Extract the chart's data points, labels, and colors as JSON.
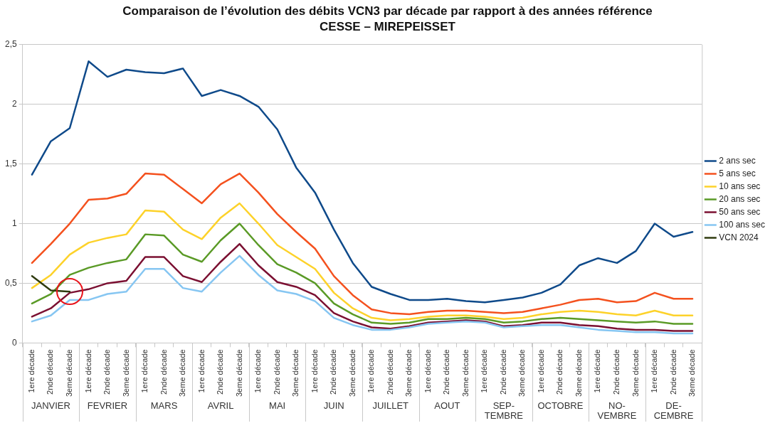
{
  "chart_data": {
    "type": "line",
    "title": "Comparaison de l’évolution des débits VCN3 par décade par rapport à des années référence",
    "subtitle": "CESSE – MIREPEISSET",
    "categories": [
      "1ere décade",
      "2nde décade",
      "3eme décade",
      "1ere décade",
      "2nde décade",
      "3eme décade",
      "1ere décade",
      "2nde décade",
      "3eme décade",
      "1ere décade",
      "2nde décade",
      "3eme décade",
      "1ere décade",
      "2nde décade",
      "3eme décade",
      "1ere décade",
      "2nde décade",
      "3eme décade",
      "1ere décade",
      "2nde décade",
      "3eme décade",
      "1ere décade",
      "2nde décade",
      "3eme décade",
      "1ere décade",
      "2nde décade",
      "3eme décade",
      "1ere décade",
      "2nde décade",
      "3eme décade",
      "1ere décade",
      "2nde décade",
      "3eme décade",
      "1ere décade",
      "2nde décade",
      "3eme décade"
    ],
    "annotations": [
      "JANVIER",
      "FEVRIER",
      "MARS",
      "AVRIL",
      "MAI",
      "JUIN",
      "JUILLET",
      "AOUT",
      "SEP-TEMBRE",
      "OCTOBRE",
      "NO-VEMBRE",
      "DE-CEMBRE"
    ],
    "series": [
      {
        "name": "2 ans sec",
        "color": "#0f4a8a",
        "values": [
          1.41,
          1.69,
          1.8,
          2.36,
          2.23,
          2.29,
          2.27,
          2.26,
          2.3,
          2.07,
          2.12,
          2.07,
          1.98,
          1.79,
          1.47,
          1.26,
          0.95,
          0.67,
          0.47,
          0.41,
          0.36,
          0.36,
          0.37,
          0.35,
          0.34,
          0.36,
          0.38,
          0.42,
          0.49,
          0.65,
          0.71,
          0.67,
          0.77,
          1.0,
          0.89,
          0.93
        ]
      },
      {
        "name": "5 ans sec",
        "color": "#f4511e",
        "values": [
          0.67,
          0.83,
          1.0,
          1.2,
          1.21,
          1.25,
          1.42,
          1.41,
          1.29,
          1.17,
          1.33,
          1.42,
          1.26,
          1.08,
          0.93,
          0.79,
          0.56,
          0.4,
          0.28,
          0.25,
          0.24,
          0.26,
          0.27,
          0.27,
          0.26,
          0.25,
          0.26,
          0.29,
          0.32,
          0.36,
          0.37,
          0.34,
          0.35,
          0.42,
          0.37,
          0.37
        ]
      },
      {
        "name": "10 ans sec",
        "color": "#fdd22a",
        "values": [
          0.46,
          0.57,
          0.74,
          0.84,
          0.88,
          0.91,
          1.11,
          1.1,
          0.95,
          0.87,
          1.05,
          1.17,
          1.0,
          0.82,
          0.72,
          0.62,
          0.42,
          0.29,
          0.21,
          0.19,
          0.2,
          0.22,
          0.23,
          0.23,
          0.22,
          0.2,
          0.21,
          0.24,
          0.26,
          0.27,
          0.26,
          0.24,
          0.23,
          0.27,
          0.23,
          0.23
        ]
      },
      {
        "name": "20 ans sec",
        "color": "#5a9a26",
        "values": [
          0.33,
          0.41,
          0.57,
          0.63,
          0.67,
          0.7,
          0.91,
          0.9,
          0.74,
          0.68,
          0.86,
          1.0,
          0.82,
          0.66,
          0.59,
          0.5,
          0.33,
          0.24,
          0.17,
          0.16,
          0.17,
          0.2,
          0.2,
          0.21,
          0.2,
          0.17,
          0.18,
          0.2,
          0.21,
          0.2,
          0.19,
          0.18,
          0.17,
          0.18,
          0.16,
          0.16
        ]
      },
      {
        "name": "50 ans sec",
        "color": "#7b1032",
        "values": [
          0.22,
          0.29,
          0.42,
          0.45,
          0.5,
          0.52,
          0.72,
          0.72,
          0.56,
          0.51,
          0.68,
          0.83,
          0.65,
          0.51,
          0.47,
          0.4,
          0.25,
          0.18,
          0.13,
          0.12,
          0.14,
          0.17,
          0.18,
          0.19,
          0.18,
          0.14,
          0.15,
          0.17,
          0.17,
          0.15,
          0.14,
          0.12,
          0.11,
          0.11,
          0.1,
          0.1
        ]
      },
      {
        "name": "100 ans sec",
        "color": "#86c6f2",
        "values": [
          0.18,
          0.23,
          0.36,
          0.36,
          0.41,
          0.43,
          0.62,
          0.62,
          0.46,
          0.43,
          0.59,
          0.73,
          0.57,
          0.44,
          0.41,
          0.35,
          0.21,
          0.15,
          0.11,
          0.11,
          0.13,
          0.16,
          0.17,
          0.18,
          0.17,
          0.13,
          0.14,
          0.15,
          0.15,
          0.13,
          0.11,
          0.1,
          0.09,
          0.09,
          0.08,
          0.08
        ]
      },
      {
        "name": "VCN 2024",
        "color": "#2f3b0f",
        "values": [
          0.56,
          0.44,
          0.43,
          null,
          null,
          null,
          null,
          null,
          null,
          null,
          null,
          null,
          null,
          null,
          null,
          null,
          null,
          null,
          null,
          null,
          null,
          null,
          null,
          null,
          null,
          null,
          null,
          null,
          null,
          null,
          null,
          null,
          null,
          null,
          null,
          null
        ]
      }
    ],
    "ylim": [
      0,
      2.5
    ],
    "yticks": [
      0,
      {
        "value": 0.5,
        "label": "0,5"
      },
      1,
      {
        "value": 1.5,
        "label": "1,5"
      },
      2,
      {
        "value": 2.5,
        "label": "2,5"
      }
    ],
    "grid": "y",
    "legend": "right"
  }
}
